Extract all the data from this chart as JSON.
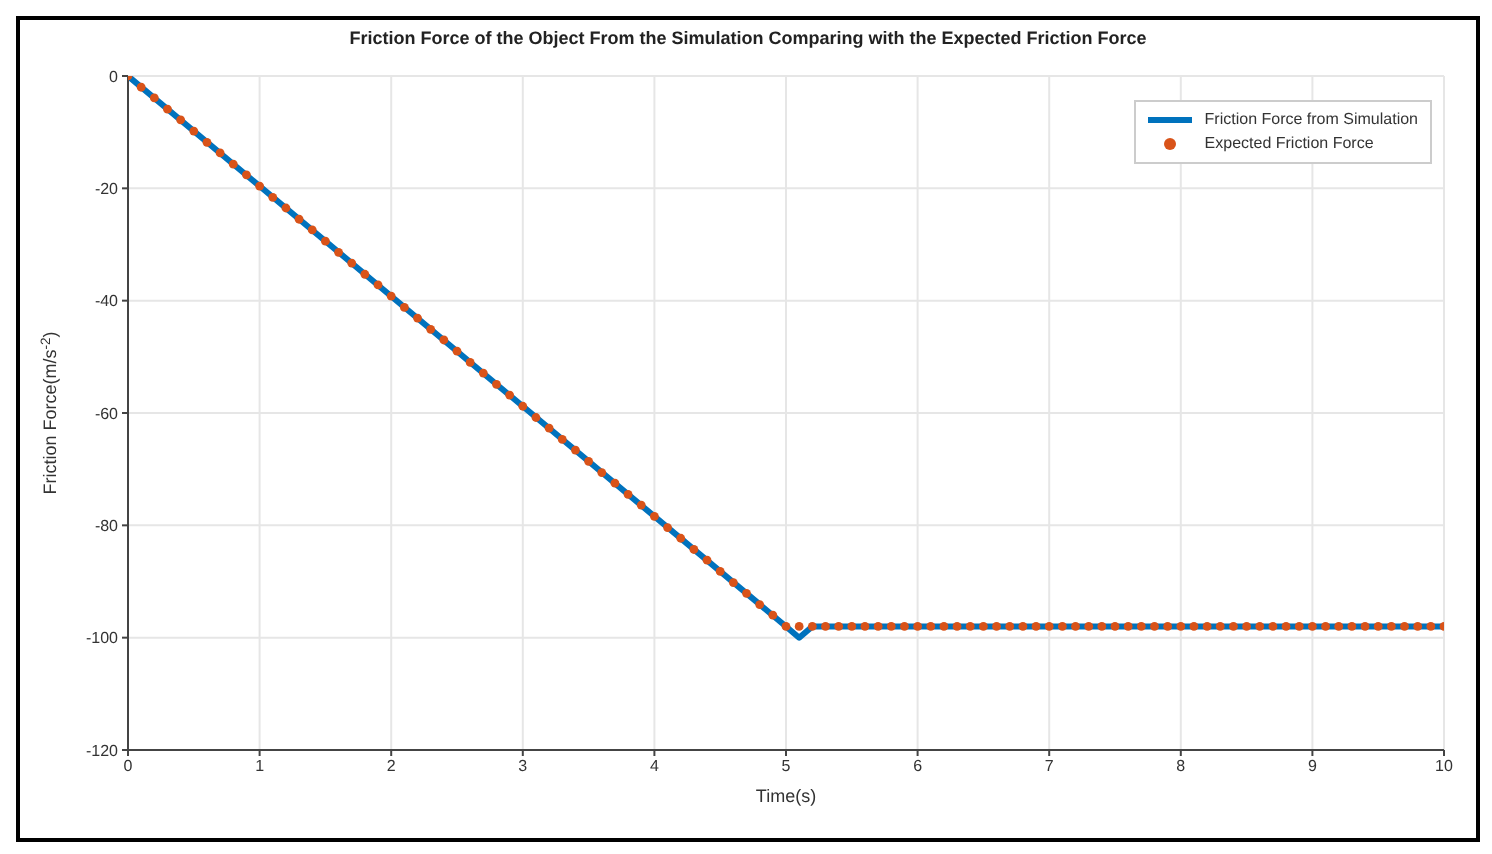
{
  "chart_data": {
    "type": "line",
    "title": "Friction Force of the Object From the Simulation Comparing with the Expected Friction Force",
    "xlabel": "Time(s)",
    "ylabel": "Friction Force(m/s$^{-2}$)",
    "xlim": [
      0,
      10
    ],
    "xticks": [
      0,
      1,
      2,
      3,
      4,
      5,
      6,
      7,
      8,
      9,
      10
    ],
    "ylim": [
      -120,
      0
    ],
    "yticks": [
      -120,
      -100,
      -80,
      -60,
      -40,
      -20,
      0
    ],
    "grid": true,
    "legend": "top right",
    "series": [
      {
        "name": "Friction Force from Simulation",
        "color": "#0072bd",
        "marker": "none",
        "line_style": "solid",
        "x": [
          0,
          5,
          5.1,
          5.2,
          10
        ],
        "values": [
          0,
          -98,
          -100,
          -98,
          -98
        ]
      },
      {
        "name": "Expected Friction Force",
        "type": "scatter",
        "color": "#d95319",
        "marker": "circle",
        "x": [
          0,
          0.1,
          0.2,
          0.3,
          0.4,
          0.5,
          0.6,
          0.7,
          0.8,
          0.9,
          1,
          1.1,
          1.2,
          1.3,
          1.4,
          1.5,
          1.6,
          1.7,
          1.8,
          1.9,
          2,
          2.1,
          2.2,
          2.3,
          2.4,
          2.5,
          2.6,
          2.7,
          2.8,
          2.9,
          3,
          3.1,
          3.2,
          3.3,
          3.4,
          3.5,
          3.6,
          3.7,
          3.8,
          3.9,
          4,
          4.1,
          4.2,
          4.3,
          4.4,
          4.5,
          4.6,
          4.7,
          4.8,
          4.9,
          5,
          5.1,
          5.2,
          5.3,
          5.4,
          5.5,
          5.6,
          5.7,
          5.8,
          5.9,
          6,
          6.1,
          6.2,
          6.3,
          6.4,
          6.5,
          6.6,
          6.7,
          6.8,
          6.9,
          7,
          7.1,
          7.2,
          7.3,
          7.4,
          7.5,
          7.6,
          7.7,
          7.8,
          7.9,
          8,
          8.1,
          8.2,
          8.3,
          8.4,
          8.5,
          8.6,
          8.7,
          8.8,
          8.9,
          9,
          9.1,
          9.2,
          9.3,
          9.4,
          9.5,
          9.6,
          9.7,
          9.8,
          9.9,
          10
        ],
        "values": [
          0,
          -2,
          -3.9,
          -5.9,
          -7.8,
          -9.8,
          -11.8,
          -13.7,
          -15.7,
          -17.6,
          -19.6,
          -21.6,
          -23.5,
          -25.5,
          -27.4,
          -29.4,
          -31.4,
          -33.3,
          -35.3,
          -37.2,
          -39.2,
          -41.2,
          -43.1,
          -45.1,
          -47,
          -49,
          -51,
          -52.9,
          -54.9,
          -56.8,
          -58.8,
          -60.8,
          -62.7,
          -64.7,
          -66.6,
          -68.6,
          -70.6,
          -72.5,
          -74.5,
          -76.4,
          -78.4,
          -80.4,
          -82.3,
          -84.3,
          -86.2,
          -88.2,
          -90.2,
          -92.1,
          -94.1,
          -96,
          -98,
          -98,
          -98,
          -98,
          -98,
          -98,
          -98,
          -98,
          -98,
          -98,
          -98,
          -98,
          -98,
          -98,
          -98,
          -98,
          -98,
          -98,
          -98,
          -98,
          -98,
          -98,
          -98,
          -98,
          -98,
          -98,
          -98,
          -98,
          -98,
          -98,
          -98,
          -98,
          -98,
          -98,
          -98,
          -98,
          -98,
          -98,
          -98,
          -98,
          -98,
          -98,
          -98,
          -98,
          -98,
          -98,
          -98,
          -98,
          -98,
          -98,
          -98
        ]
      }
    ]
  }
}
